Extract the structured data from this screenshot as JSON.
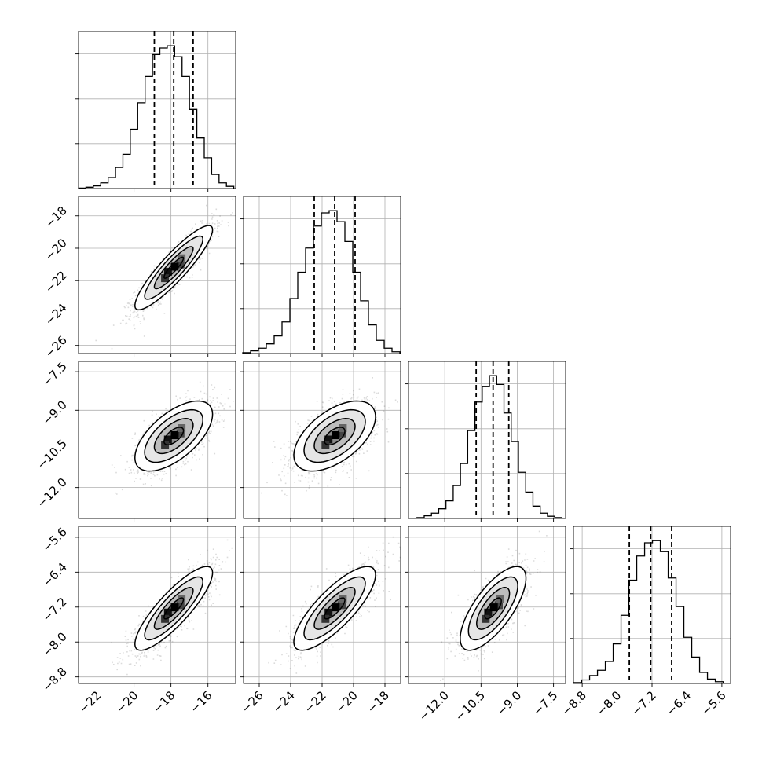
{
  "chart_data": {
    "type": "corner",
    "n_params": 4,
    "title": "",
    "parameter_labels": [
      "",
      "",
      "",
      ""
    ],
    "params": [
      {
        "range": [
          -23.0,
          -14.5
        ],
        "ticks": [
          -22,
          -20,
          -18,
          -16
        ],
        "tick_labels": [
          "−22",
          "−20",
          "−18",
          "−16"
        ],
        "quantiles": [
          -18.9,
          -17.85,
          -16.8
        ],
        "hist_x": [
          -22.8,
          -22.4,
          -22.0,
          -21.6,
          -21.2,
          -20.8,
          -20.4,
          -20.0,
          -19.6,
          -19.2,
          -18.8,
          -18.4,
          -18.0,
          -17.6,
          -17.2,
          -16.8,
          -16.4,
          -16.0,
          -15.6,
          -15.2,
          -14.8
        ],
        "hist_y": [
          1,
          3,
          6,
          13,
          25,
          48,
          78,
          135,
          195,
          255,
          305,
          320,
          325,
          300,
          255,
          180,
          115,
          70,
          32,
          13,
          5
        ]
      },
      {
        "range": [
          -27.0,
          -17.0
        ],
        "ticks": [
          -26,
          -24,
          -22,
          -20,
          -18
        ],
        "tick_labels": [
          "−26",
          "−24",
          "−22",
          "−20",
          "−18"
        ],
        "y_range": [
          -26.5,
          -16.8
        ],
        "y_ticks": [
          -26,
          -24,
          -22,
          -20,
          -18
        ],
        "quantiles": [
          -22.5,
          -21.2,
          -19.9
        ],
        "hist_x": [
          -26.8,
          -26.3,
          -25.8,
          -25.3,
          -24.8,
          -24.3,
          -23.8,
          -23.3,
          -22.8,
          -22.3,
          -21.8,
          -21.3,
          -20.8,
          -20.3,
          -19.8,
          -19.3,
          -18.8,
          -18.3,
          -17.8,
          -17.3
        ],
        "hist_y": [
          2,
          6,
          12,
          22,
          40,
          72,
          125,
          185,
          240,
          290,
          320,
          325,
          300,
          255,
          185,
          120,
          65,
          30,
          12,
          4
        ]
      },
      {
        "range": [
          -13.5,
          -7.0
        ],
        "ticks": [
          -12.0,
          -10.5,
          -9.0,
          -7.5
        ],
        "tick_labels": [
          "−12.0",
          "−10.5",
          "−9.0",
          "−7.5"
        ],
        "y_range": [
          -13.2,
          -7.1
        ],
        "y_ticks": [
          -12.0,
          -10.5,
          -9.0,
          -7.5
        ],
        "y_tick_labels": [
          "−12.0",
          "−10.5",
          "−9.0",
          "−7.5"
        ],
        "quantiles": [
          -10.7,
          -10.0,
          -9.35
        ],
        "hist_x": [
          -13.0,
          -12.7,
          -12.4,
          -12.1,
          -11.8,
          -11.5,
          -11.2,
          -10.9,
          -10.6,
          -10.3,
          -10.0,
          -9.7,
          -9.4,
          -9.1,
          -8.8,
          -8.5,
          -8.2,
          -7.9,
          -7.6,
          -7.3
        ],
        "hist_y": [
          2,
          6,
          12,
          22,
          40,
          75,
          125,
          200,
          265,
          300,
          325,
          305,
          240,
          175,
          105,
          60,
          28,
          12,
          5,
          2
        ]
      },
      {
        "range": [
          -9.0,
          -5.4
        ],
        "ticks": [
          -8.8,
          -8.0,
          -7.2,
          -6.4,
          -5.6
        ],
        "tick_labels": [
          "−8.8",
          "−8.0",
          "−7.2",
          "−6.4",
          "−5.6"
        ],
        "y_range": [
          -8.95,
          -5.35
        ],
        "y_ticks": [
          -8.8,
          -8.0,
          -7.2,
          -6.4,
          -5.6
        ],
        "y_tick_labels": [
          "−8.8",
          "−8.0",
          "−7.2",
          "−6.4",
          "−5.6"
        ],
        "quantiles": [
          -7.72,
          -7.23,
          -6.75
        ],
        "hist_x": [
          -8.9,
          -8.72,
          -8.54,
          -8.36,
          -8.18,
          -8.0,
          -7.82,
          -7.64,
          -7.46,
          -7.28,
          -7.1,
          -6.92,
          -6.74,
          -6.56,
          -6.38,
          -6.2,
          -6.02,
          -5.84,
          -5.66
        ],
        "hist_y": [
          2,
          8,
          18,
          30,
          50,
          90,
          155,
          235,
          290,
          320,
          325,
          300,
          240,
          175,
          105,
          60,
          25,
          10,
          4
        ]
      }
    ],
    "pairs": [
      {
        "row": 1,
        "col": 0,
        "mean": [
          -17.85,
          -21.2
        ],
        "std": [
          1.05,
          1.3
        ],
        "rho": 0.9
      },
      {
        "row": 2,
        "col": 0,
        "mean": [
          -17.85,
          -10.0
        ],
        "std": [
          1.05,
          0.68
        ],
        "rho": 0.62
      },
      {
        "row": 2,
        "col": 1,
        "mean": [
          -21.2,
          -10.0
        ],
        "std": [
          1.3,
          0.68
        ],
        "rho": 0.55
      },
      {
        "row": 3,
        "col": 0,
        "mean": [
          -17.85,
          -7.23
        ],
        "std": [
          1.05,
          0.48
        ],
        "rho": 0.85
      },
      {
        "row": 3,
        "col": 1,
        "mean": [
          -21.2,
          -7.23
        ],
        "std": [
          1.3,
          0.48
        ],
        "rho": 0.8
      },
      {
        "row": 3,
        "col": 2,
        "mean": [
          -10.0,
          -7.23
        ],
        "std": [
          0.68,
          0.48
        ],
        "rho": 0.72
      }
    ],
    "contour_levels": [
      0.5,
      1.0,
      1.5,
      2.0
    ],
    "grid": true,
    "legend": "none"
  }
}
